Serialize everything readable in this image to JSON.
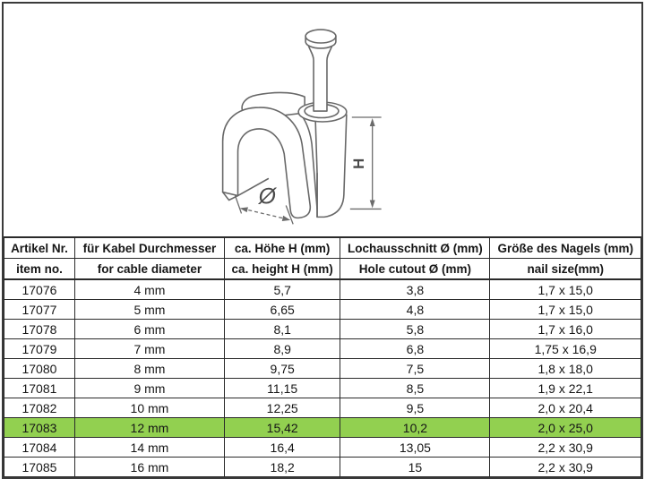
{
  "diagram": {
    "name": "cable-clip-with-nail-technical-drawing",
    "labels": {
      "height": "H",
      "diameter": "Ø"
    }
  },
  "table": {
    "highlight_color": "#92d050",
    "columns": [
      {
        "de": "Artikel Nr.",
        "en": "item no."
      },
      {
        "de": "für Kabel Durchmesser",
        "en": "for cable diameter"
      },
      {
        "de": "ca. Höhe H (mm)",
        "en": "ca. height H (mm)"
      },
      {
        "de": "Lochausschnitt Ø (mm)",
        "en": "Hole cutout Ø (mm)"
      },
      {
        "de": "Größe des Nagels (mm)",
        "en": "nail size(mm)"
      }
    ],
    "rows": [
      {
        "item_no": "17076",
        "cable_diameter": "4 mm",
        "height_mm": "5,7",
        "hole_cutout_mm": "3,8",
        "nail_size_mm": "1,7 x 15,0",
        "highlighted": false
      },
      {
        "item_no": "17077",
        "cable_diameter": "5 mm",
        "height_mm": "6,65",
        "hole_cutout_mm": "4,8",
        "nail_size_mm": "1,7 x 15,0",
        "highlighted": false
      },
      {
        "item_no": "17078",
        "cable_diameter": "6 mm",
        "height_mm": "8,1",
        "hole_cutout_mm": "5,8",
        "nail_size_mm": "1,7 x 16,0",
        "highlighted": false
      },
      {
        "item_no": "17079",
        "cable_diameter": "7 mm",
        "height_mm": "8,9",
        "hole_cutout_mm": "6,8",
        "nail_size_mm": "1,75 x 16,9",
        "highlighted": false
      },
      {
        "item_no": "17080",
        "cable_diameter": "8 mm",
        "height_mm": "9,75",
        "hole_cutout_mm": "7,5",
        "nail_size_mm": "1,8 x 18,0",
        "highlighted": false
      },
      {
        "item_no": "17081",
        "cable_diameter": "9 mm",
        "height_mm": "11,15",
        "hole_cutout_mm": "8,5",
        "nail_size_mm": "1,9 x 22,1",
        "highlighted": false
      },
      {
        "item_no": "17082",
        "cable_diameter": "10 mm",
        "height_mm": "12,25",
        "hole_cutout_mm": "9,5",
        "nail_size_mm": "2,0 x 20,4",
        "highlighted": false
      },
      {
        "item_no": "17083",
        "cable_diameter": "12 mm",
        "height_mm": "15,42",
        "hole_cutout_mm": "10,2",
        "nail_size_mm": "2,0 x 25,0",
        "highlighted": true
      },
      {
        "item_no": "17084",
        "cable_diameter": "14 mm",
        "height_mm": "16,4",
        "hole_cutout_mm": "13,05",
        "nail_size_mm": "2,2 x 30,9",
        "highlighted": false
      },
      {
        "item_no": "17085",
        "cable_diameter": "16 mm",
        "height_mm": "18,2",
        "hole_cutout_mm": "15",
        "nail_size_mm": "2,2 x 30,9",
        "highlighted": false
      }
    ]
  }
}
